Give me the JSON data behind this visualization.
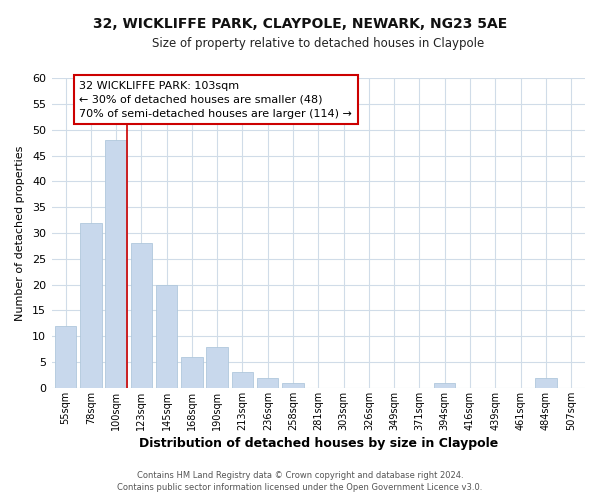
{
  "title": "32, WICKLIFFE PARK, CLAYPOLE, NEWARK, NG23 5AE",
  "subtitle": "Size of property relative to detached houses in Claypole",
  "xlabel": "Distribution of detached houses by size in Claypole",
  "ylabel": "Number of detached properties",
  "bar_color": "#c8d8ec",
  "bar_edge_color": "#b0c8dc",
  "categories": [
    "55sqm",
    "78sqm",
    "100sqm",
    "123sqm",
    "145sqm",
    "168sqm",
    "190sqm",
    "213sqm",
    "236sqm",
    "258sqm",
    "281sqm",
    "303sqm",
    "326sqm",
    "349sqm",
    "371sqm",
    "394sqm",
    "416sqm",
    "439sqm",
    "461sqm",
    "484sqm",
    "507sqm"
  ],
  "values": [
    12,
    32,
    48,
    28,
    20,
    6,
    8,
    3,
    2,
    1,
    0,
    0,
    0,
    0,
    0,
    1,
    0,
    0,
    0,
    2,
    0
  ],
  "ylim": [
    0,
    60
  ],
  "yticks": [
    0,
    5,
    10,
    15,
    20,
    25,
    30,
    35,
    40,
    45,
    50,
    55,
    60
  ],
  "vline_color": "#cc0000",
  "annotation_title": "32 WICKLIFFE PARK: 103sqm",
  "annotation_line1": "← 30% of detached houses are smaller (48)",
  "annotation_line2": "70% of semi-detached houses are larger (114) →",
  "annotation_box_color": "#ffffff",
  "annotation_box_edge": "#cc0000",
  "footer1": "Contains HM Land Registry data © Crown copyright and database right 2024.",
  "footer2": "Contains public sector information licensed under the Open Government Licence v3.0.",
  "background_color": "#ffffff",
  "plot_bg_color": "#ffffff",
  "grid_color": "#d0dce8"
}
